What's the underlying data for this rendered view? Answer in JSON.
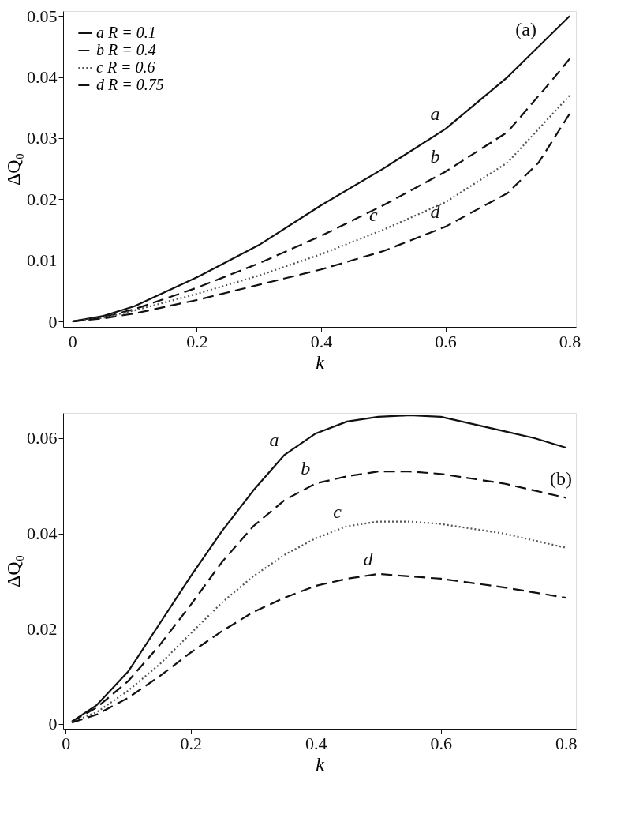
{
  "chart_data": [
    {
      "type": "line",
      "xlabel": "k",
      "ylabel": "ΔQ₀",
      "xlim": [
        -0.015,
        0.81
      ],
      "ylim": [
        -0.0009,
        0.0508
      ],
      "xticks": [
        0,
        0.2,
        0.4,
        0.6,
        0.8
      ],
      "yticks": [
        0,
        0.01,
        0.02,
        0.03,
        0.04,
        0.05
      ],
      "grid": false,
      "legend": "top left",
      "annotations": [
        "(a)",
        {
          "text": "a",
          "x": 0.6,
          "y": 0.0315
        },
        {
          "text": "b",
          "x": 0.6,
          "y": 0.0245
        },
        {
          "text": "c",
          "x": 0.5,
          "y": 0.015
        },
        {
          "text": "d",
          "x": 0.6,
          "y": 0.0155
        }
      ],
      "series": [
        {
          "name": "a R = 0.1",
          "color": "#111111",
          "line_style": "solid",
          "x": [
            0,
            0.05,
            0.1,
            0.2,
            0.3,
            0.4,
            0.5,
            0.6,
            0.7,
            0.8
          ],
          "values": [
            0,
            0.0009,
            0.0025,
            0.0072,
            0.0125,
            0.019,
            0.025,
            0.0315,
            0.04,
            0.05
          ]
        },
        {
          "name": "b R = 0.4",
          "color": "#111111",
          "line_style": "dashed",
          "x": [
            0,
            0.05,
            0.1,
            0.2,
            0.3,
            0.4,
            0.5,
            0.6,
            0.7,
            0.77,
            0.8
          ],
          "values": [
            0,
            0.0007,
            0.002,
            0.0055,
            0.0095,
            0.014,
            0.019,
            0.0245,
            0.031,
            0.0393,
            0.043
          ]
        },
        {
          "name": "c R = 0.6",
          "color": "#555555",
          "line_style": "dotted",
          "x": [
            0,
            0.05,
            0.1,
            0.2,
            0.3,
            0.4,
            0.5,
            0.6,
            0.7,
            0.8
          ],
          "values": [
            0,
            0.0006,
            0.0018,
            0.0045,
            0.0075,
            0.011,
            0.015,
            0.0195,
            0.026,
            0.037
          ]
        },
        {
          "name": "d R = 0.75",
          "color": "#111111",
          "line_style": "dashed",
          "x": [
            0,
            0.05,
            0.1,
            0.2,
            0.3,
            0.4,
            0.5,
            0.6,
            0.7,
            0.75,
            0.8
          ],
          "values": [
            0,
            0.0005,
            0.0013,
            0.0035,
            0.006,
            0.0085,
            0.0115,
            0.0155,
            0.021,
            0.026,
            0.034
          ]
        }
      ]
    },
    {
      "type": "line",
      "xlabel": "k",
      "ylabel": "ΔQ₀",
      "xlim": [
        -0.004,
        0.816
      ],
      "ylim": [
        -0.001,
        0.0653
      ],
      "xticks": [
        0,
        0.2,
        0.4,
        0.6,
        0.8
      ],
      "yticks": [
        0,
        0.02,
        0.04,
        0.06
      ],
      "grid": false,
      "legend": "top left",
      "annotations": [
        "(b)",
        {
          "text": "a",
          "x": 0.35,
          "y": 0.0565
        },
        {
          "text": "b",
          "x": 0.4,
          "y": 0.0505
        },
        {
          "text": "c",
          "x": 0.45,
          "y": 0.0415
        },
        {
          "text": "d",
          "x": 0.5,
          "y": 0.0315
        }
      ],
      "series": [
        {
          "name": "a R = 0.1",
          "color": "#111111",
          "line_style": "solid",
          "x": [
            0.01,
            0.05,
            0.1,
            0.15,
            0.2,
            0.25,
            0.3,
            0.35,
            0.4,
            0.45,
            0.5,
            0.55,
            0.6,
            0.65,
            0.7,
            0.75,
            0.8
          ],
          "values": [
            0.0005,
            0.004,
            0.011,
            0.021,
            0.031,
            0.0405,
            0.049,
            0.0565,
            0.061,
            0.0635,
            0.0645,
            0.0648,
            0.0645,
            0.063,
            0.0615,
            0.06,
            0.058
          ]
        },
        {
          "name": "b R = 0.4",
          "color": "#111111",
          "line_style": "dashed",
          "x": [
            0.01,
            0.05,
            0.1,
            0.15,
            0.2,
            0.25,
            0.3,
            0.35,
            0.4,
            0.45,
            0.5,
            0.55,
            0.6,
            0.65,
            0.7,
            0.8
          ],
          "values": [
            0.0005,
            0.0035,
            0.009,
            0.0165,
            0.025,
            0.034,
            0.0415,
            0.047,
            0.0505,
            0.052,
            0.053,
            0.053,
            0.0525,
            0.0515,
            0.0505,
            0.0475
          ]
        },
        {
          "name": "c R = 0.6",
          "color": "#555555",
          "line_style": "dotted",
          "x": [
            0.01,
            0.05,
            0.1,
            0.15,
            0.2,
            0.25,
            0.3,
            0.35,
            0.4,
            0.45,
            0.5,
            0.55,
            0.6,
            0.7,
            0.8
          ],
          "values": [
            0.0004,
            0.0025,
            0.007,
            0.0125,
            0.019,
            0.0255,
            0.031,
            0.0355,
            0.039,
            0.0415,
            0.0425,
            0.0425,
            0.042,
            0.04,
            0.037
          ]
        },
        {
          "name": "d R = 0.75",
          "color": "#111111",
          "line_style": "dashed",
          "x": [
            0.01,
            0.05,
            0.1,
            0.15,
            0.2,
            0.25,
            0.3,
            0.35,
            0.4,
            0.45,
            0.5,
            0.55,
            0.6,
            0.7,
            0.8
          ],
          "values": [
            0.0003,
            0.002,
            0.0055,
            0.01,
            0.015,
            0.0195,
            0.0235,
            0.0265,
            0.029,
            0.0305,
            0.0315,
            0.031,
            0.0305,
            0.0287,
            0.0265
          ]
        }
      ]
    }
  ]
}
